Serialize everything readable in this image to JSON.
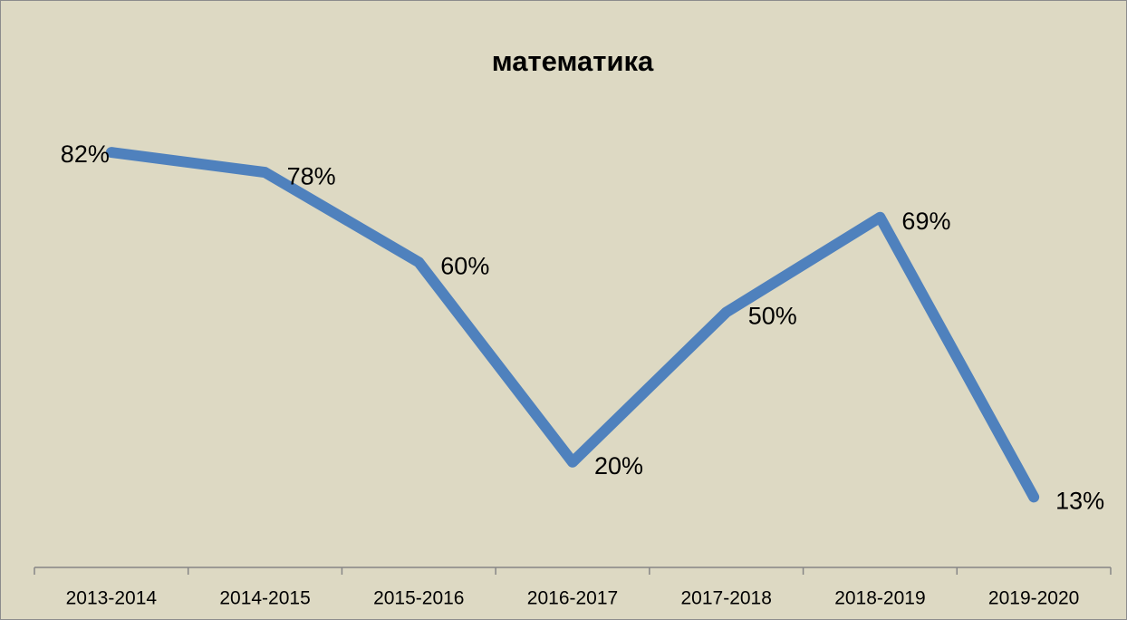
{
  "chart_data": {
    "type": "line",
    "title": "математика",
    "categories": [
      "2013-2014",
      "2014-2015",
      "2015-2016",
      "2016-2017",
      "2017-2018",
      "2018-2019",
      "2019-2020"
    ],
    "series": [
      {
        "name": "математика",
        "color": "#4f81bd",
        "values": [
          82,
          78,
          60,
          20,
          50,
          69,
          13
        ],
        "value_labels": [
          "82%",
          "78%",
          "60%",
          "20%",
          "50%",
          "69%",
          "13%"
        ]
      }
    ],
    "ylim": [
      0,
      90
    ]
  }
}
